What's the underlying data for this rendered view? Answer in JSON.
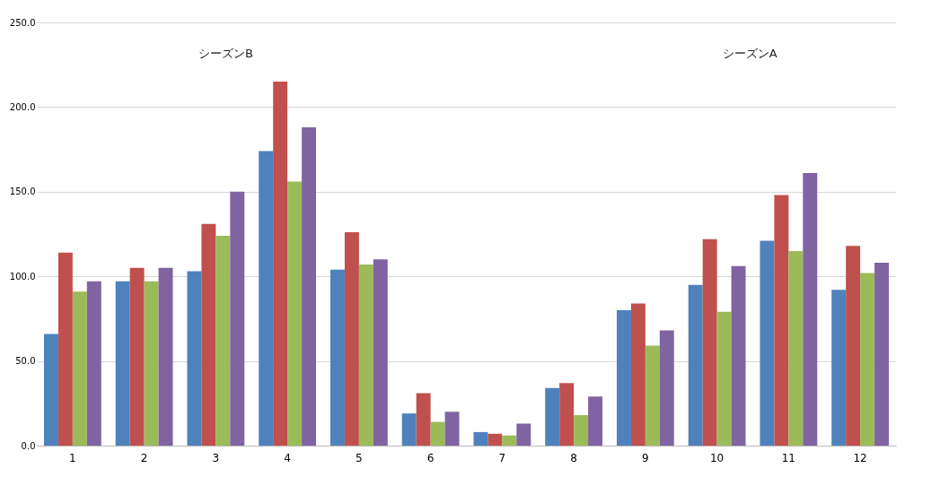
{
  "chart_data": {
    "type": "bar",
    "categories": [
      "1",
      "2",
      "3",
      "4",
      "5",
      "6",
      "7",
      "8",
      "9",
      "10",
      "11",
      "12"
    ],
    "series": [
      {
        "color": "#4f81bd",
        "values": [
          66,
          97,
          103,
          174,
          104,
          19,
          8,
          34,
          80,
          95,
          121,
          92
        ]
      },
      {
        "color": "#c0504d",
        "values": [
          114,
          105,
          131,
          215,
          126,
          31,
          7,
          37,
          84,
          122,
          148,
          118
        ]
      },
      {
        "color": "#9bbb59",
        "values": [
          91,
          97,
          124,
          156,
          107,
          14,
          6,
          18,
          59,
          79,
          115,
          102
        ]
      },
      {
        "color": "#8064a2",
        "values": [
          97,
          105,
          150,
          188,
          110,
          20,
          13,
          29,
          68,
          106,
          161,
          108
        ]
      }
    ],
    "ylim": [
      0,
      250
    ],
    "yticks": [
      {
        "value": 0,
        "label": "0.0"
      },
      {
        "value": 50,
        "label": "50.0"
      },
      {
        "value": 100,
        "label": "100.0"
      },
      {
        "value": 150,
        "label": "150.0"
      },
      {
        "value": 200,
        "label": "200.0"
      },
      {
        "value": 250,
        "label": "250.0"
      }
    ],
    "grid": "y",
    "annotations": [
      "シーズンB",
      "シーズンA"
    ]
  }
}
